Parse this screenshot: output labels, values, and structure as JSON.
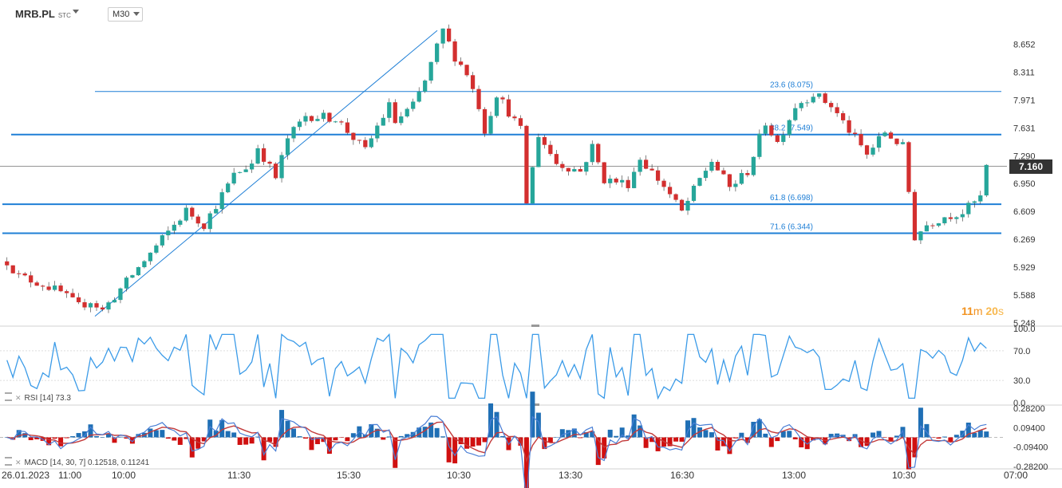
{
  "header": {
    "symbol": "MRB.PL",
    "symbol_suffix": "STC",
    "timeframe": "M30"
  },
  "last_price": "7.160",
  "timer": {
    "minutes": "11",
    "m_label": "m",
    "seconds": "20",
    "s_label": "s"
  },
  "colors": {
    "up": "#26a69a",
    "down": "#d32f2f",
    "fib": "#1f7fd6",
    "rsi": "#3b9be8",
    "macd_line": "#4a7fd6",
    "macd_signal": "#c33b3b",
    "hist_pos": "#1f6fb5",
    "hist_neg": "#d01010"
  },
  "chart_data": [
    {
      "type": "candlestick",
      "ylim": [
        5.248,
        8.9
      ],
      "yticks": [
        "8.652",
        "8.311",
        "7.971",
        "7.631",
        "7.290",
        "6.950",
        "6.609",
        "6.269",
        "5.929",
        "5.588",
        "5.248"
      ],
      "xticks": [
        "26.01.2023",
        "11:00",
        "10:00",
        "11:30",
        "15:30",
        "10:30",
        "13:30",
        "16:30",
        "13:00",
        "10:30",
        "07:00"
      ],
      "last_price": 7.16,
      "close_path": [
        [
          0,
          6.0
        ],
        [
          2,
          5.82
        ],
        [
          6,
          5.72
        ],
        [
          9,
          5.62
        ],
        [
          12,
          5.45
        ],
        [
          14,
          5.52
        ],
        [
          16,
          5.4
        ],
        [
          30,
          6.62
        ],
        [
          33,
          6.45
        ],
        [
          38,
          7.05
        ],
        [
          41,
          7.2
        ],
        [
          42,
          7.4
        ],
        [
          45,
          7.02
        ],
        [
          47,
          7.5
        ],
        [
          50,
          7.78
        ],
        [
          55,
          7.75
        ],
        [
          60,
          7.35
        ],
        [
          62,
          7.65
        ],
        [
          64,
          7.9
        ],
        [
          65,
          7.7
        ],
        [
          68,
          7.9
        ],
        [
          70,
          8.2
        ],
        [
          73,
          8.82
        ],
        [
          75,
          8.5
        ],
        [
          77,
          8.3
        ],
        [
          79,
          7.9
        ],
        [
          80,
          7.6
        ],
        [
          82,
          8.05
        ],
        [
          86,
          7.6
        ],
        [
          87,
          6.72
        ],
        [
          89,
          7.55
        ],
        [
          92,
          7.2
        ],
        [
          96,
          7.1
        ],
        [
          98,
          7.4
        ],
        [
          100,
          7.0
        ],
        [
          104,
          6.95
        ],
        [
          106,
          7.26
        ],
        [
          110,
          6.92
        ],
        [
          113,
          6.6
        ],
        [
          116,
          7.0
        ],
        [
          118,
          7.23
        ],
        [
          121,
          6.9
        ],
        [
          124,
          7.1
        ],
        [
          127,
          7.7
        ],
        [
          129,
          7.45
        ],
        [
          132,
          7.9
        ],
        [
          135,
          8.05
        ],
        [
          138,
          7.9
        ],
        [
          141,
          7.6
        ],
        [
          144,
          7.3
        ],
        [
          147,
          7.58
        ],
        [
          150,
          7.4
        ],
        [
          152,
          6.3
        ],
        [
          154,
          6.45
        ],
        [
          157,
          6.55
        ],
        [
          160,
          6.6
        ],
        [
          163,
          6.78
        ],
        [
          164,
          7.16
        ]
      ],
      "fibonacci": [
        {
          "label": "23.6 (8.075)",
          "price": 8.075
        },
        {
          "label": "38.2 (7.549)",
          "price": 7.549
        },
        {
          "label": "61.8 (6.698)",
          "price": 6.698
        },
        {
          "label": "71.6 (6.344)",
          "price": 6.344
        }
      ]
    },
    {
      "type": "line",
      "name": "RSI",
      "params": "[14]",
      "last_value": "73.3",
      "ylim": [
        0,
        100
      ],
      "yticks": [
        "100.0",
        "70.0",
        "30.0",
        "0.0"
      ],
      "levels": [
        70,
        30
      ],
      "note": "oscillates roughly 20-80, ending near 73.3"
    },
    {
      "type": "line",
      "name": "MACD",
      "params": "[14, 30, 7]",
      "values": [
        "0.12518",
        "0.11241"
      ],
      "ylim": [
        -0.282,
        0.282
      ],
      "yticks": [
        "0.28200",
        "0.09400",
        "-0.09400",
        "-0.28200"
      ]
    }
  ]
}
